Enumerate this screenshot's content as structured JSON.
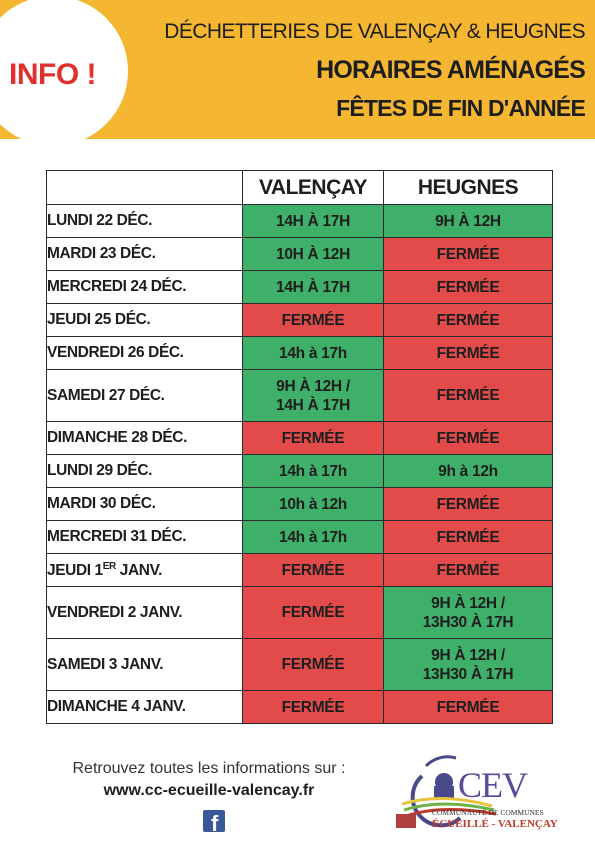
{
  "header": {
    "badge": "INFO !",
    "line1": "DÉCHETTERIES DE VALENÇAY & HEUGNES",
    "line2": "HORAIRES AMÉNAGÉS",
    "line3": "FÊTES DE FIN D'ANNÉE"
  },
  "table": {
    "columns": [
      "",
      "VALENÇAY",
      "HEUGNES"
    ],
    "rows": [
      {
        "day": "LUNDI 22 DÉC.",
        "valencay": [
          "14H À 17H"
        ],
        "heugnes": [
          "9H À 12H"
        ],
        "v_open": true,
        "h_open": true
      },
      {
        "day": "MARDI 23 DÉC.",
        "valencay": [
          "10H À 12H"
        ],
        "heugnes": [
          "FERMÉE"
        ],
        "v_open": true,
        "h_open": false
      },
      {
        "day": "MERCREDI 24 DÉC.",
        "valencay": [
          "14H À 17H"
        ],
        "heugnes": [
          "FERMÉE"
        ],
        "v_open": true,
        "h_open": false
      },
      {
        "day": "JEUDI 25 DÉC.",
        "valencay": [
          "FERMÉE"
        ],
        "heugnes": [
          "FERMÉE"
        ],
        "v_open": false,
        "h_open": false
      },
      {
        "day": "VENDREDI 26 DÉC.",
        "valencay": [
          "14h à 17h"
        ],
        "heugnes": [
          "FERMÉE"
        ],
        "v_open": true,
        "h_open": false
      },
      {
        "day": "SAMEDI 27 DÉC.",
        "valencay": [
          "9H À 12H /",
          "14H À 17H"
        ],
        "heugnes": [
          "FERMÉE"
        ],
        "v_open": true,
        "h_open": false
      },
      {
        "day": "DIMANCHE 28 DÉC.",
        "valencay": [
          "FERMÉE"
        ],
        "heugnes": [
          "FERMÉE"
        ],
        "v_open": false,
        "h_open": false
      },
      {
        "day": "LUNDI 29 DÉC.",
        "valencay": [
          "14h à 17h"
        ],
        "heugnes": [
          "9h à 12h"
        ],
        "v_open": true,
        "h_open": true
      },
      {
        "day": "MARDI 30 DÉC.",
        "valencay": [
          "10h à 12h"
        ],
        "heugnes": [
          "FERMÉE"
        ],
        "v_open": true,
        "h_open": false
      },
      {
        "day": "MERCREDI 31 DÉC.",
        "valencay": [
          "14h à 17h"
        ],
        "heugnes": [
          "FERMÉE"
        ],
        "v_open": true,
        "h_open": false
      },
      {
        "day": "JEUDI 1",
        "day_sup": "ER",
        "day_suffix": " JANV.",
        "valencay": [
          "FERMÉE"
        ],
        "heugnes": [
          "FERMÉE"
        ],
        "v_open": false,
        "h_open": false
      },
      {
        "day": "VENDREDI 2 JANV.",
        "valencay": [
          "FERMÉE"
        ],
        "heugnes": [
          "9H À 12H /",
          "13H30 À 17H"
        ],
        "v_open": false,
        "h_open": true
      },
      {
        "day": "SAMEDI 3 JANV.",
        "valencay": [
          "FERMÉE"
        ],
        "heugnes": [
          "9H À 12H /",
          "13H30 À 17H"
        ],
        "v_open": false,
        "h_open": true
      },
      {
        "day": "DIMANCHE 4 JANV.",
        "valencay": [
          "FERMÉE"
        ],
        "heugnes": [
          "FERMÉE"
        ],
        "v_open": false,
        "h_open": false
      }
    ]
  },
  "footer": {
    "info": "Retrouvez toutes les informations sur :",
    "url": "www.cc-ecueille-valencay.fr",
    "social_icon": "facebook-icon"
  },
  "logo": {
    "word": "CEV",
    "sub1": "COMMUNAUTÉ DE COMMUNES",
    "sub2": "ÉCUEILLÉ - VALENÇAY"
  },
  "colors": {
    "header_bg": "#f5b731",
    "badge": "#e2302e",
    "open": "#3fb06a",
    "closed": "#e34b4b"
  }
}
